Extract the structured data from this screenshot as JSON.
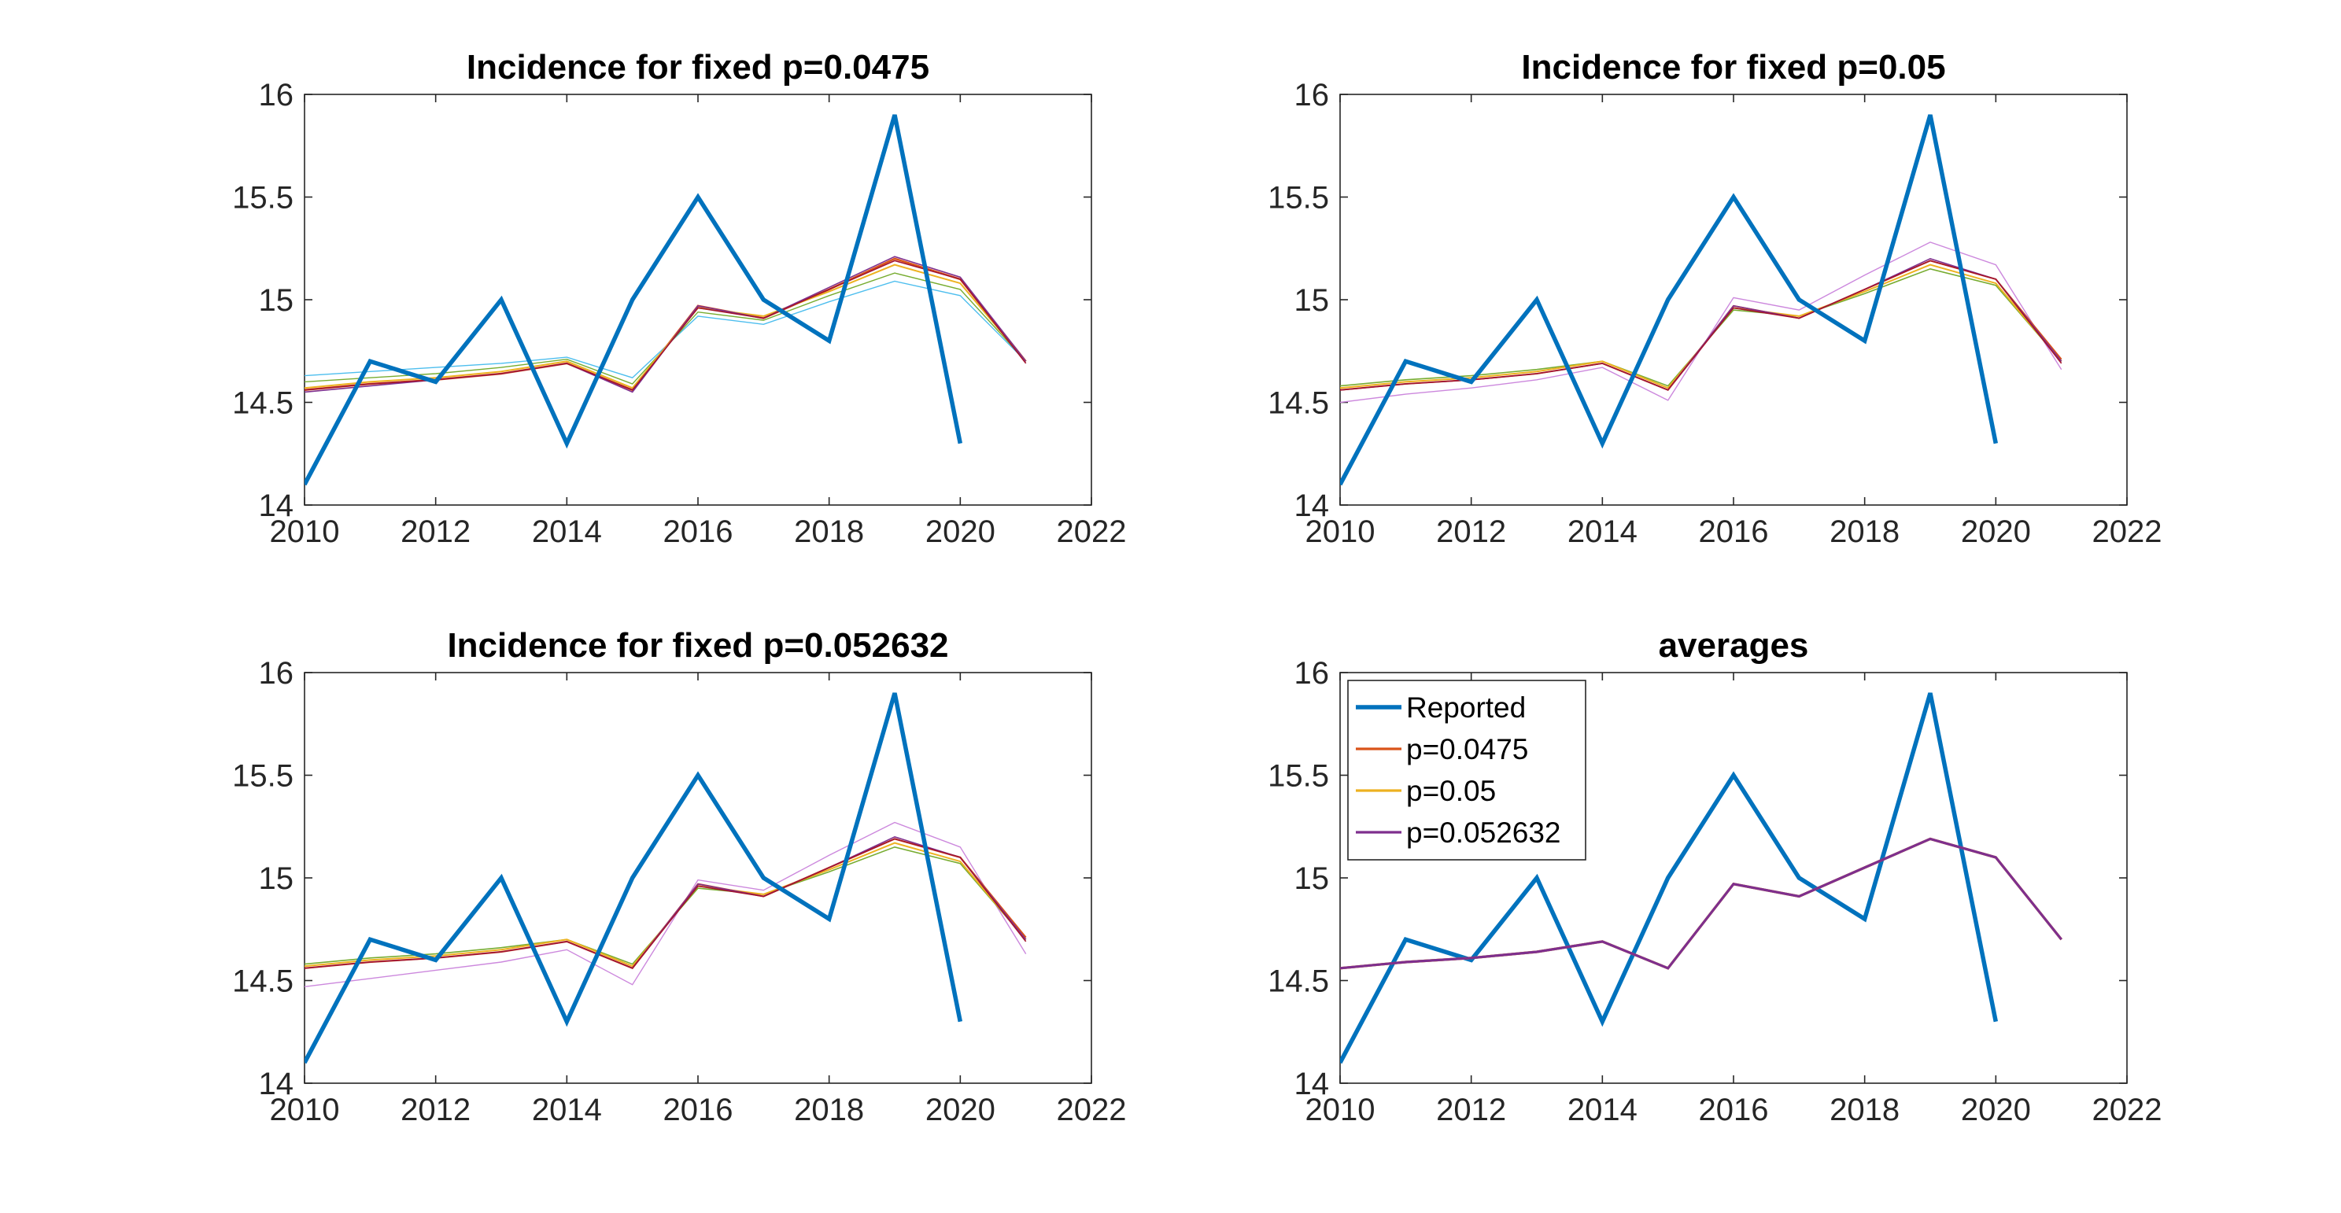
{
  "chart_data": [
    {
      "type": "line",
      "title": "Incidence for fixed p=0.0475",
      "xlim": [
        2010,
        2022
      ],
      "ylim": [
        14,
        16
      ],
      "xticks": [
        2010,
        2012,
        2014,
        2016,
        2018,
        2020,
        2022
      ],
      "yticks": [
        14,
        14.5,
        15,
        15.5,
        16
      ],
      "grid": false,
      "series": [
        {
          "color": "#4DBEEE",
          "width": 1.4,
          "x": [
            2010,
            2011,
            2012,
            2013,
            2014,
            2015,
            2016,
            2017,
            2018,
            2019,
            2020,
            2021
          ],
          "values": [
            14.63,
            14.65,
            14.67,
            14.69,
            14.72,
            14.62,
            14.92,
            14.88,
            14.99,
            15.09,
            15.02,
            14.7
          ]
        },
        {
          "color": "#77AC30",
          "width": 1.4,
          "x": [
            2010,
            2011,
            2012,
            2013,
            2014,
            2015,
            2016,
            2017,
            2018,
            2019,
            2020,
            2021
          ],
          "values": [
            14.6,
            14.62,
            14.64,
            14.67,
            14.71,
            14.59,
            14.94,
            14.9,
            15.02,
            15.13,
            15.05,
            14.7
          ]
        },
        {
          "color": "#D95319",
          "width": 2.5,
          "x": [
            2010,
            2011,
            2012,
            2013,
            2014,
            2015,
            2016,
            2017,
            2018,
            2019,
            2020,
            2021
          ],
          "values": [
            14.56,
            14.59,
            14.61,
            14.64,
            14.69,
            14.56,
            14.97,
            14.91,
            15.05,
            15.2,
            15.1,
            14.7
          ]
        },
        {
          "color": "#EDB120",
          "width": 2.0,
          "x": [
            2010,
            2011,
            2012,
            2013,
            2014,
            2015,
            2016,
            2017,
            2018,
            2019,
            2020,
            2021
          ],
          "values": [
            14.57,
            14.6,
            14.62,
            14.65,
            14.7,
            14.57,
            14.96,
            14.92,
            15.04,
            15.17,
            15.08,
            14.7
          ]
        },
        {
          "color": "#7E2F8E",
          "width": 1.6,
          "x": [
            2010,
            2011,
            2012,
            2013,
            2014,
            2015,
            2016,
            2017,
            2018,
            2019,
            2020,
            2021
          ],
          "values": [
            14.55,
            14.58,
            14.61,
            14.64,
            14.69,
            14.55,
            14.97,
            14.91,
            15.06,
            15.21,
            15.11,
            14.7
          ]
        },
        {
          "color": "#A2142F",
          "width": 1.6,
          "x": [
            2010,
            2011,
            2012,
            2013,
            2014,
            2015,
            2016,
            2017,
            2018,
            2019,
            2020,
            2021
          ],
          "values": [
            14.56,
            14.59,
            14.61,
            14.64,
            14.69,
            14.56,
            14.96,
            14.91,
            15.05,
            15.19,
            15.1,
            14.69
          ]
        },
        {
          "color": "#0072BD",
          "width": 5.5,
          "x": [
            2010,
            2011,
            2012,
            2013,
            2014,
            2015,
            2016,
            2017,
            2018,
            2019,
            2020
          ],
          "values": [
            14.1,
            14.7,
            14.6,
            15,
            14.3,
            15,
            15.5,
            15,
            14.8,
            15.9,
            14.3
          ]
        }
      ]
    },
    {
      "type": "line",
      "title": "Incidence for fixed p=0.05",
      "xlim": [
        2010,
        2022
      ],
      "ylim": [
        14,
        16
      ],
      "xticks": [
        2010,
        2012,
        2014,
        2016,
        2018,
        2020,
        2022
      ],
      "yticks": [
        14,
        14.5,
        15,
        15.5,
        16
      ],
      "grid": false,
      "series": [
        {
          "color": "#CC88DD",
          "width": 1.4,
          "x": [
            2010,
            2011,
            2012,
            2013,
            2014,
            2015,
            2016,
            2017,
            2018,
            2019,
            2020,
            2021
          ],
          "values": [
            14.5,
            14.54,
            14.57,
            14.61,
            14.67,
            14.51,
            15.01,
            14.95,
            15.12,
            15.28,
            15.17,
            14.66
          ]
        },
        {
          "color": "#77AC30",
          "width": 1.6,
          "x": [
            2010,
            2011,
            2012,
            2013,
            2014,
            2015,
            2016,
            2017,
            2018,
            2019,
            2020,
            2021
          ],
          "values": [
            14.58,
            14.61,
            14.63,
            14.66,
            14.7,
            14.58,
            14.95,
            14.92,
            15.03,
            15.15,
            15.07,
            14.7
          ]
        },
        {
          "color": "#EDB120",
          "width": 2.0,
          "x": [
            2010,
            2011,
            2012,
            2013,
            2014,
            2015,
            2016,
            2017,
            2018,
            2019,
            2020,
            2021
          ],
          "values": [
            14.57,
            14.6,
            14.62,
            14.65,
            14.7,
            14.57,
            14.96,
            14.92,
            15.04,
            15.17,
            15.08,
            14.7
          ]
        },
        {
          "color": "#D95319",
          "width": 2.0,
          "x": [
            2010,
            2011,
            2012,
            2013,
            2014,
            2015,
            2016,
            2017,
            2018,
            2019,
            2020,
            2021
          ],
          "values": [
            14.56,
            14.59,
            14.61,
            14.64,
            14.69,
            14.56,
            14.97,
            14.91,
            15.05,
            15.19,
            15.1,
            14.71
          ]
        },
        {
          "color": "#7E2F8E",
          "width": 1.6,
          "x": [
            2010,
            2011,
            2012,
            2013,
            2014,
            2015,
            2016,
            2017,
            2018,
            2019,
            2020,
            2021
          ],
          "values": [
            14.56,
            14.59,
            14.61,
            14.64,
            14.69,
            14.56,
            14.97,
            14.91,
            15.05,
            15.2,
            15.1,
            14.7
          ]
        },
        {
          "color": "#A2142F",
          "width": 1.6,
          "x": [
            2010,
            2011,
            2012,
            2013,
            2014,
            2015,
            2016,
            2017,
            2018,
            2019,
            2020,
            2021
          ],
          "values": [
            14.56,
            14.59,
            14.61,
            14.64,
            14.69,
            14.56,
            14.96,
            14.91,
            15.05,
            15.19,
            15.1,
            14.69
          ]
        },
        {
          "color": "#0072BD",
          "width": 5.5,
          "x": [
            2010,
            2011,
            2012,
            2013,
            2014,
            2015,
            2016,
            2017,
            2018,
            2019,
            2020
          ],
          "values": [
            14.1,
            14.7,
            14.6,
            15,
            14.3,
            15,
            15.5,
            15,
            14.8,
            15.9,
            14.3
          ]
        }
      ]
    },
    {
      "type": "line",
      "title": "Incidence for fixed p=0.052632",
      "xlim": [
        2010,
        2022
      ],
      "ylim": [
        14,
        16
      ],
      "xticks": [
        2010,
        2012,
        2014,
        2016,
        2018,
        2020,
        2022
      ],
      "yticks": [
        14,
        14.5,
        15,
        15.5,
        16
      ],
      "grid": false,
      "series": [
        {
          "color": "#CC88DD",
          "width": 1.4,
          "x": [
            2010,
            2011,
            2012,
            2013,
            2014,
            2015,
            2016,
            2017,
            2018,
            2019,
            2020,
            2021
          ],
          "values": [
            14.47,
            14.51,
            14.55,
            14.59,
            14.65,
            14.48,
            14.99,
            14.94,
            15.11,
            15.27,
            15.15,
            14.63
          ]
        },
        {
          "color": "#77AC30",
          "width": 1.6,
          "x": [
            2010,
            2011,
            2012,
            2013,
            2014,
            2015,
            2016,
            2017,
            2018,
            2019,
            2020,
            2021
          ],
          "values": [
            14.58,
            14.61,
            14.63,
            14.66,
            14.7,
            14.58,
            14.95,
            14.92,
            15.03,
            15.15,
            15.07,
            14.7
          ]
        },
        {
          "color": "#EDB120",
          "width": 2.0,
          "x": [
            2010,
            2011,
            2012,
            2013,
            2014,
            2015,
            2016,
            2017,
            2018,
            2019,
            2020,
            2021
          ],
          "values": [
            14.57,
            14.6,
            14.62,
            14.65,
            14.7,
            14.57,
            14.96,
            14.92,
            15.04,
            15.17,
            15.08,
            14.7
          ]
        },
        {
          "color": "#D95319",
          "width": 2.2,
          "x": [
            2010,
            2011,
            2012,
            2013,
            2014,
            2015,
            2016,
            2017,
            2018,
            2019,
            2020,
            2021
          ],
          "values": [
            14.56,
            14.59,
            14.61,
            14.64,
            14.69,
            14.56,
            14.97,
            14.91,
            15.05,
            15.19,
            15.1,
            14.71
          ]
        },
        {
          "color": "#7E2F8E",
          "width": 1.6,
          "x": [
            2010,
            2011,
            2012,
            2013,
            2014,
            2015,
            2016,
            2017,
            2018,
            2019,
            2020,
            2021
          ],
          "values": [
            14.56,
            14.59,
            14.61,
            14.64,
            14.69,
            14.56,
            14.97,
            14.91,
            15.05,
            15.2,
            15.1,
            14.7
          ]
        },
        {
          "color": "#A2142F",
          "width": 1.6,
          "x": [
            2010,
            2011,
            2012,
            2013,
            2014,
            2015,
            2016,
            2017,
            2018,
            2019,
            2020,
            2021
          ],
          "values": [
            14.56,
            14.59,
            14.61,
            14.64,
            14.69,
            14.56,
            14.96,
            14.91,
            15.05,
            15.19,
            15.1,
            14.69
          ]
        },
        {
          "color": "#0072BD",
          "width": 5.5,
          "x": [
            2010,
            2011,
            2012,
            2013,
            2014,
            2015,
            2016,
            2017,
            2018,
            2019,
            2020
          ],
          "values": [
            14.1,
            14.7,
            14.6,
            15,
            14.3,
            15,
            15.5,
            15,
            14.8,
            15.9,
            14.3
          ]
        }
      ]
    },
    {
      "type": "line",
      "title": "averages",
      "xlim": [
        2010,
        2022
      ],
      "ylim": [
        14,
        16
      ],
      "xticks": [
        2010,
        2012,
        2014,
        2016,
        2018,
        2020,
        2022
      ],
      "yticks": [
        14,
        14.5,
        15,
        15.5,
        16
      ],
      "grid": false,
      "legend": "top-left",
      "series": [
        {
          "name": "Reported",
          "color": "#0072BD",
          "width": 5.5,
          "x": [
            2010,
            2011,
            2012,
            2013,
            2014,
            2015,
            2016,
            2017,
            2018,
            2019,
            2020
          ],
          "values": [
            14.1,
            14.7,
            14.6,
            15,
            14.3,
            15,
            15.5,
            15,
            14.8,
            15.9,
            14.3
          ]
        },
        {
          "name": "p=0.0475",
          "color": "#D95319",
          "width": 3.2,
          "x": [
            2010,
            2011,
            2012,
            2013,
            2014,
            2015,
            2016,
            2017,
            2018,
            2019,
            2020,
            2021
          ],
          "values": [
            14.56,
            14.59,
            14.61,
            14.64,
            14.69,
            14.56,
            14.97,
            14.91,
            15.05,
            15.19,
            15.1,
            14.7
          ]
        },
        {
          "name": "p=0.05",
          "color": "#EDB120",
          "width": 3.2,
          "x": [
            2010,
            2011,
            2012,
            2013,
            2014,
            2015,
            2016,
            2017,
            2018,
            2019,
            2020,
            2021
          ],
          "values": [
            14.56,
            14.59,
            14.61,
            14.64,
            14.69,
            14.56,
            14.97,
            14.91,
            15.05,
            15.19,
            15.1,
            14.7
          ]
        },
        {
          "name": "p=0.052632",
          "color": "#7E2F8E",
          "width": 3.2,
          "x": [
            2010,
            2011,
            2012,
            2013,
            2014,
            2015,
            2016,
            2017,
            2018,
            2019,
            2020,
            2021
          ],
          "values": [
            14.56,
            14.59,
            14.61,
            14.64,
            14.69,
            14.56,
            14.97,
            14.91,
            15.05,
            15.19,
            15.1,
            14.7
          ]
        }
      ]
    }
  ]
}
